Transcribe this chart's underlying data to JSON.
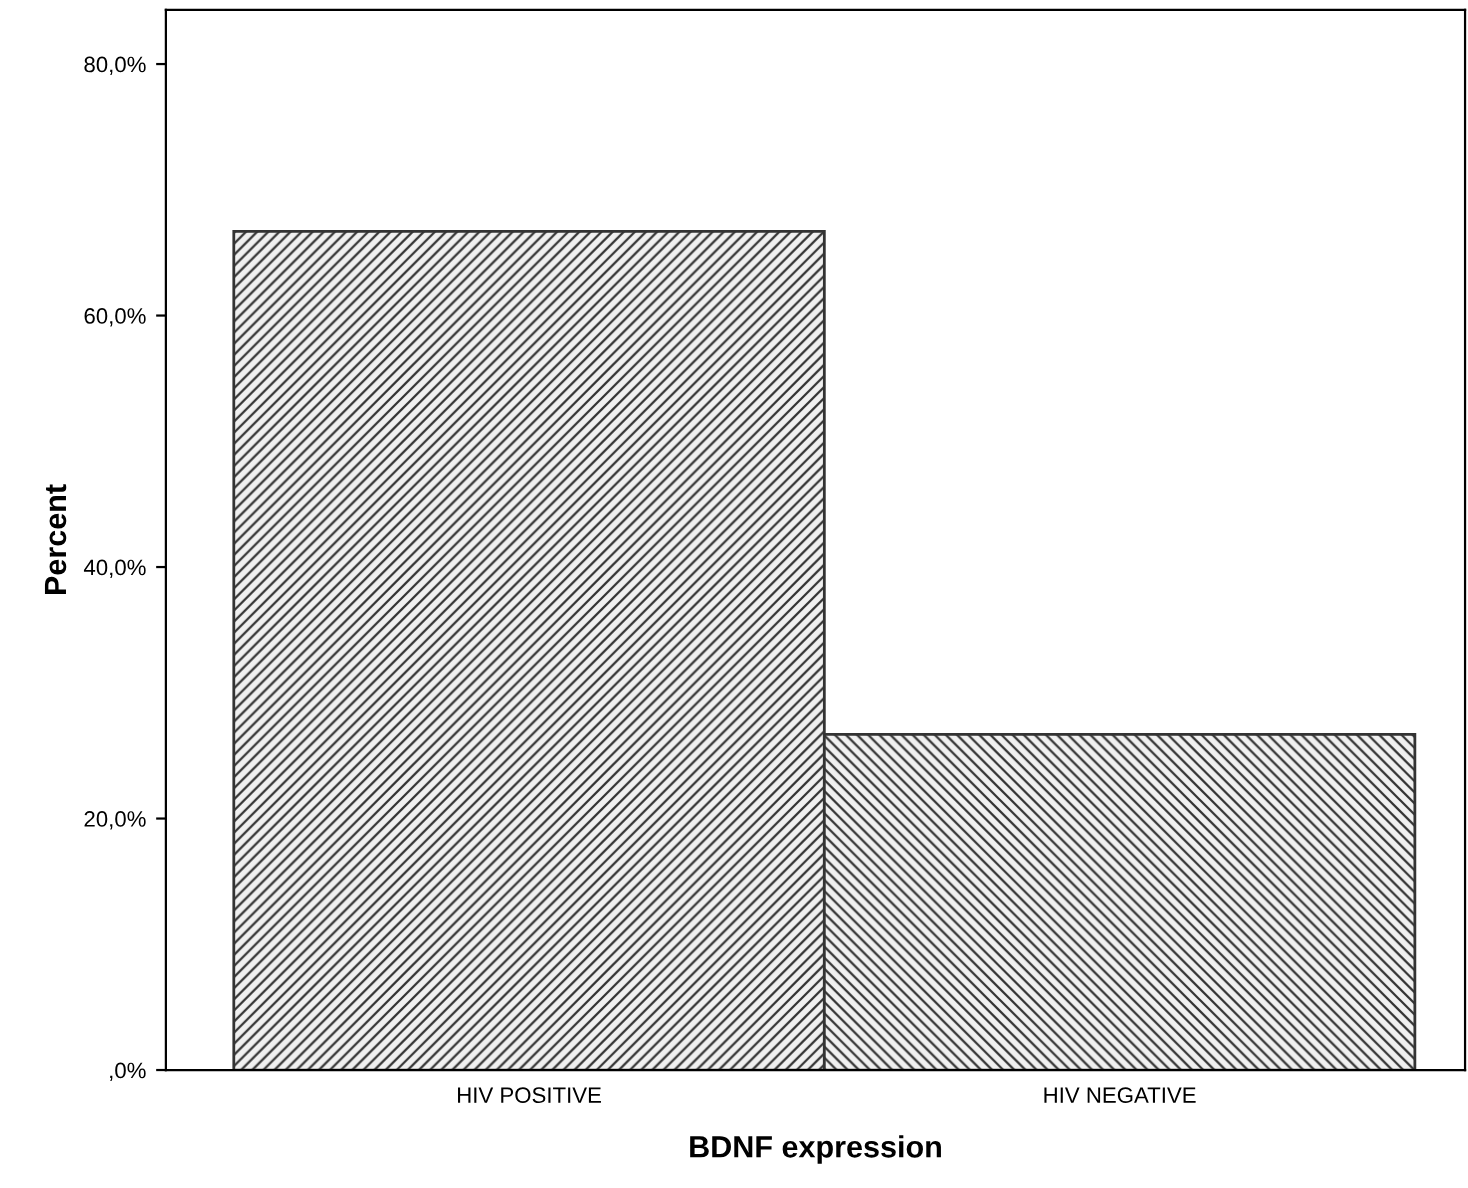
{
  "chart_data": {
    "type": "bar",
    "xlabel": "BDNF expression",
    "ylabel": "Percent",
    "categories": [
      "HIV POSITIVE",
      "HIV NEGATIVE"
    ],
    "values": [
      66.7,
      26.7
    ],
    "colors": [
      "#333333",
      "#333333"
    ],
    "ylim": [
      0,
      84.3
    ],
    "yticks": [
      {
        "value": 0,
        "label": ",0%"
      },
      {
        "value": 20,
        "label": "20,0%"
      },
      {
        "value": 40,
        "label": "40,0%"
      },
      {
        "value": 60,
        "label": "60,0%"
      },
      {
        "value": 80,
        "label": "80,0%"
      }
    ],
    "grid": false
  }
}
